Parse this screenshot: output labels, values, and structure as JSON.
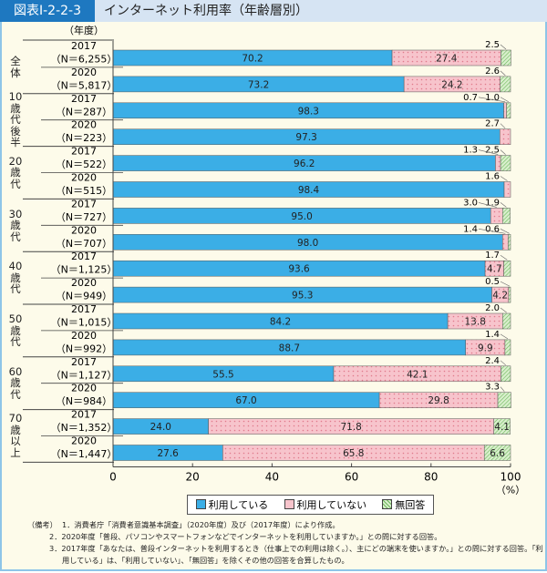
{
  "header": {
    "figure_number": "図表Ⅰ-2-2-3",
    "title": "インターネット利用率（年齢層別）"
  },
  "chart_data": {
    "type": "bar",
    "orientation": "horizontal",
    "stacked": true,
    "year_axis_label": "（年度）",
    "groups": [
      {
        "label": "全体",
        "rows": [
          {
            "year": "2017",
            "n": "（N＝6,255）",
            "values": [
              70.2,
              27.4,
              2.5
            ]
          },
          {
            "year": "2020",
            "n": "（N＝5,817）",
            "values": [
              73.2,
              24.2,
              2.6
            ]
          }
        ]
      },
      {
        "label": "10歳代後半",
        "rows": [
          {
            "year": "2017",
            "n": "（N＝287）",
            "values": [
              98.3,
              0.7,
              1.0
            ]
          },
          {
            "year": "2020",
            "n": "（N＝223）",
            "values": [
              97.3,
              2.7,
              null
            ]
          }
        ]
      },
      {
        "label": "20歳代",
        "rows": [
          {
            "year": "2017",
            "n": "（N＝522）",
            "values": [
              96.2,
              1.3,
              2.5
            ]
          },
          {
            "year": "2020",
            "n": "（N＝515）",
            "values": [
              98.4,
              1.6,
              null
            ]
          }
        ]
      },
      {
        "label": "30歳代",
        "rows": [
          {
            "year": "2017",
            "n": "（N＝727）",
            "values": [
              95.0,
              3.0,
              1.9
            ]
          },
          {
            "year": "2020",
            "n": "（N＝707）",
            "values": [
              98.0,
              1.4,
              0.6
            ]
          }
        ]
      },
      {
        "label": "40歳代",
        "rows": [
          {
            "year": "2017",
            "n": "（N＝1,125）",
            "values": [
              93.6,
              4.7,
              1.7
            ]
          },
          {
            "year": "2020",
            "n": "（N＝949）",
            "values": [
              95.3,
              4.2,
              0.5
            ]
          }
        ]
      },
      {
        "label": "50歳代",
        "rows": [
          {
            "year": "2017",
            "n": "（N＝1,015）",
            "values": [
              84.2,
              13.8,
              2.0
            ]
          },
          {
            "year": "2020",
            "n": "（N＝992）",
            "values": [
              88.7,
              9.9,
              1.4
            ]
          }
        ]
      },
      {
        "label": "60歳代",
        "rows": [
          {
            "year": "2017",
            "n": "（N＝1,127）",
            "values": [
              55.5,
              42.1,
              2.4
            ]
          },
          {
            "year": "2020",
            "n": "（N＝984）",
            "values": [
              67.0,
              29.8,
              3.3
            ]
          }
        ]
      },
      {
        "label": "70歳以上",
        "rows": [
          {
            "year": "2017",
            "n": "（N＝1,352）",
            "values": [
              24.0,
              71.8,
              4.1
            ]
          },
          {
            "year": "2020",
            "n": "（N＝1,447）",
            "values": [
              27.6,
              65.8,
              6.6
            ]
          }
        ]
      }
    ],
    "series": [
      {
        "name": "利用している",
        "color": "#3baee6"
      },
      {
        "name": "利用していない",
        "color": "#f7c4cc"
      },
      {
        "name": "無回答",
        "color": "#b7dfa8"
      }
    ],
    "xlim": [
      0,
      100
    ],
    "xticks": [
      "0",
      "20",
      "40",
      "60",
      "80",
      "100"
    ],
    "xunit": "（%）",
    "legend": "bottom"
  },
  "notes": {
    "head": "（備考）",
    "items": [
      "1．消費者庁「消費者意識基本調査」（2020年度）及び（2017年度）により作成。",
      "2．2020年度「普段、パソコンやスマートフォンなどでインターネットを利用していますか。」との問に対する回答。",
      "3．2017年度「あなたは、普段インターネットを利用するとき（仕事上での利用は除く。）、主にどの端末を使いますか。」との問に対する回答。「利用している」は、「利用していない」、「無回答」を除くその他の回答を合算したもの。"
    ]
  }
}
